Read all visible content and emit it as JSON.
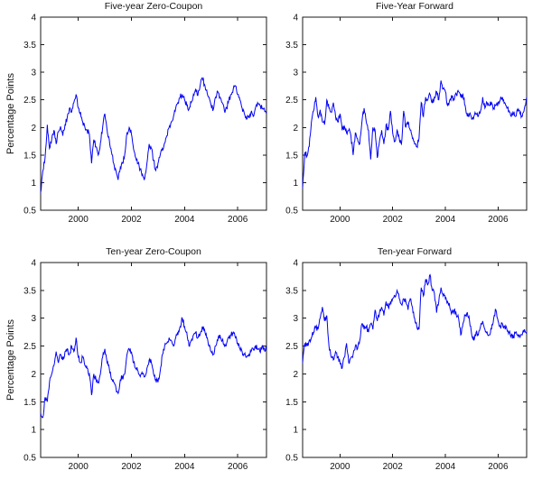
{
  "figure": {
    "background": "#ffffff"
  },
  "style": {
    "line_color": "#0202f5",
    "axis_color": "#1a1a1a",
    "tick_label_color": "#111111",
    "noise_amplitude": 0.05
  },
  "chart_data": [
    {
      "type": "line",
      "title": "Five-year Zero-Coupon",
      "ylabel": "Percentage Points",
      "xlabel": "",
      "ylim": [
        0.5,
        4
      ],
      "xlim": [
        1998.583,
        2007.083
      ],
      "yticks": [
        0.5,
        1,
        1.5,
        2,
        2.5,
        3,
        3.5,
        4
      ],
      "xticks": [
        2000,
        2002,
        2004,
        2006
      ],
      "grid": false,
      "legend": null,
      "x_start": 1998.583,
      "x_step_years": 0.083333,
      "values": [
        0.82,
        1.22,
        1.45,
        2.05,
        1.62,
        1.78,
        1.95,
        1.7,
        1.92,
        2.02,
        1.85,
        2.05,
        2.18,
        2.35,
        2.28,
        2.45,
        2.6,
        2.35,
        2.28,
        2.1,
        2.0,
        1.95,
        1.88,
        1.35,
        1.78,
        1.65,
        1.5,
        1.72,
        2.0,
        2.25,
        1.95,
        1.78,
        1.55,
        1.35,
        1.22,
        1.05,
        1.28,
        1.35,
        1.52,
        1.9,
        2.0,
        1.88,
        1.6,
        1.45,
        1.35,
        1.25,
        1.15,
        1.08,
        1.35,
        1.7,
        1.62,
        1.4,
        1.22,
        1.35,
        1.5,
        1.62,
        1.72,
        1.85,
        2.0,
        2.1,
        2.2,
        2.35,
        2.45,
        2.55,
        2.6,
        2.5,
        2.4,
        2.33,
        2.45,
        2.6,
        2.7,
        2.58,
        2.75,
        2.9,
        2.78,
        2.68,
        2.55,
        2.4,
        2.33,
        2.55,
        2.65,
        2.55,
        2.45,
        2.3,
        2.35,
        2.5,
        2.6,
        2.7,
        2.75,
        2.6,
        2.5,
        2.35,
        2.25,
        2.15,
        2.2,
        2.27,
        2.2,
        2.35,
        2.45,
        2.4,
        2.35,
        2.35,
        2.25
      ]
    },
    {
      "type": "line",
      "title": "Five-Year Forward",
      "ylabel": "",
      "xlabel": "",
      "ylim": [
        0.5,
        4
      ],
      "xlim": [
        1998.583,
        2007.083
      ],
      "yticks": [
        0.5,
        1,
        1.5,
        2,
        2.5,
        3,
        3.5,
        4
      ],
      "xticks": [
        2000,
        2002,
        2004,
        2006
      ],
      "grid": false,
      "legend": null,
      "x_start": 1998.583,
      "x_step_years": 0.083333,
      "values": [
        0.9,
        1.55,
        1.48,
        1.65,
        2.1,
        2.3,
        2.55,
        2.2,
        2.32,
        2.1,
        2.05,
        2.5,
        2.35,
        2.28,
        2.45,
        2.2,
        2.1,
        2.25,
        1.95,
        2.02,
        1.9,
        1.95,
        1.85,
        1.5,
        1.9,
        1.8,
        1.7,
        2.1,
        2.35,
        2.1,
        1.95,
        1.42,
        2.0,
        1.95,
        1.45,
        1.75,
        1.95,
        1.7,
        2.05,
        1.95,
        2.3,
        1.9,
        1.75,
        1.95,
        1.8,
        1.7,
        2.3,
        2.0,
        2.1,
        1.95,
        1.8,
        1.7,
        1.65,
        1.8,
        2.45,
        2.2,
        2.55,
        2.5,
        2.6,
        2.45,
        2.55,
        2.65,
        2.5,
        2.85,
        2.7,
        2.65,
        2.4,
        2.5,
        2.55,
        2.5,
        2.6,
        2.65,
        2.55,
        2.6,
        2.4,
        2.2,
        2.25,
        2.15,
        2.2,
        2.25,
        2.2,
        2.3,
        2.55,
        2.35,
        2.45,
        2.4,
        2.45,
        2.35,
        2.4,
        2.45,
        2.5,
        2.55,
        2.45,
        2.35,
        2.3,
        2.2,
        2.25,
        2.2,
        2.3,
        2.25,
        2.2,
        2.35,
        2.55
      ]
    },
    {
      "type": "line",
      "title": "Ten-year Zero-Coupon",
      "ylabel": "Percentage Points",
      "xlabel": "",
      "ylim": [
        0.5,
        4
      ],
      "xlim": [
        1998.583,
        2007.083
      ],
      "yticks": [
        0.5,
        1,
        1.5,
        2,
        2.5,
        3,
        3.5,
        4
      ],
      "xticks": [
        2000,
        2002,
        2004,
        2006
      ],
      "grid": false,
      "legend": null,
      "x_start": 1998.583,
      "x_step_years": 0.083333,
      "values": [
        1.3,
        1.22,
        1.58,
        1.5,
        1.85,
        2.0,
        2.15,
        2.4,
        2.2,
        2.35,
        2.25,
        2.4,
        2.45,
        2.35,
        2.5,
        2.4,
        2.65,
        2.3,
        2.2,
        2.3,
        2.15,
        2.1,
        2.0,
        1.62,
        2.0,
        1.9,
        1.85,
        2.0,
        2.3,
        2.45,
        2.2,
        2.1,
        1.9,
        1.85,
        1.75,
        1.65,
        1.9,
        1.95,
        2.0,
        2.35,
        2.45,
        2.4,
        2.2,
        2.1,
        2.05,
        1.95,
        2.0,
        1.95,
        2.1,
        2.25,
        2.2,
        2.0,
        1.9,
        1.85,
        2.05,
        2.35,
        2.5,
        2.55,
        2.65,
        2.6,
        2.5,
        2.65,
        2.7,
        2.85,
        3.0,
        2.85,
        2.75,
        2.5,
        2.6,
        2.7,
        2.75,
        2.65,
        2.7,
        2.85,
        2.8,
        2.65,
        2.5,
        2.4,
        2.35,
        2.5,
        2.6,
        2.7,
        2.6,
        2.5,
        2.55,
        2.65,
        2.7,
        2.75,
        2.65,
        2.55,
        2.45,
        2.4,
        2.35,
        2.3,
        2.35,
        2.4,
        2.45,
        2.5,
        2.45,
        2.4,
        2.5,
        2.45,
        2.45
      ]
    },
    {
      "type": "line",
      "title": "Ten-year Forward",
      "ylabel": "",
      "xlabel": "",
      "ylim": [
        0.5,
        4
      ],
      "xlim": [
        1998.583,
        2007.083
      ],
      "yticks": [
        0.5,
        1,
        1.5,
        2,
        2.5,
        3,
        3.5,
        4
      ],
      "xticks": [
        2000,
        2002,
        2004,
        2006
      ],
      "grid": false,
      "legend": null,
      "x_start": 1998.583,
      "x_step_years": 0.083333,
      "values": [
        2.2,
        2.55,
        2.5,
        2.6,
        2.65,
        2.75,
        2.85,
        2.8,
        3.0,
        3.2,
        2.95,
        3.05,
        2.5,
        2.3,
        2.25,
        2.4,
        2.3,
        2.2,
        2.1,
        2.3,
        2.55,
        2.2,
        2.3,
        2.35,
        2.5,
        2.45,
        2.6,
        2.9,
        2.8,
        2.85,
        2.75,
        2.9,
        2.8,
        3.15,
        2.95,
        3.1,
        3.2,
        3.05,
        3.3,
        3.2,
        3.3,
        3.35,
        3.4,
        3.5,
        3.35,
        3.25,
        3.35,
        3.3,
        3.15,
        3.35,
        3.2,
        3.0,
        2.85,
        2.8,
        3.55,
        3.4,
        3.7,
        3.6,
        3.78,
        3.5,
        3.45,
        3.1,
        3.3,
        3.55,
        3.4,
        3.35,
        3.3,
        3.2,
        3.1,
        3.15,
        3.05,
        3.0,
        2.7,
        2.9,
        3.05,
        3.1,
        2.95,
        2.7,
        2.6,
        2.75,
        2.7,
        2.85,
        2.95,
        2.8,
        2.75,
        2.7,
        2.8,
        3.0,
        3.15,
        2.95,
        2.85,
        2.9,
        2.85,
        2.8,
        2.75,
        2.7,
        2.65,
        2.75,
        2.7,
        2.65,
        2.7,
        2.8,
        2.75
      ]
    }
  ]
}
